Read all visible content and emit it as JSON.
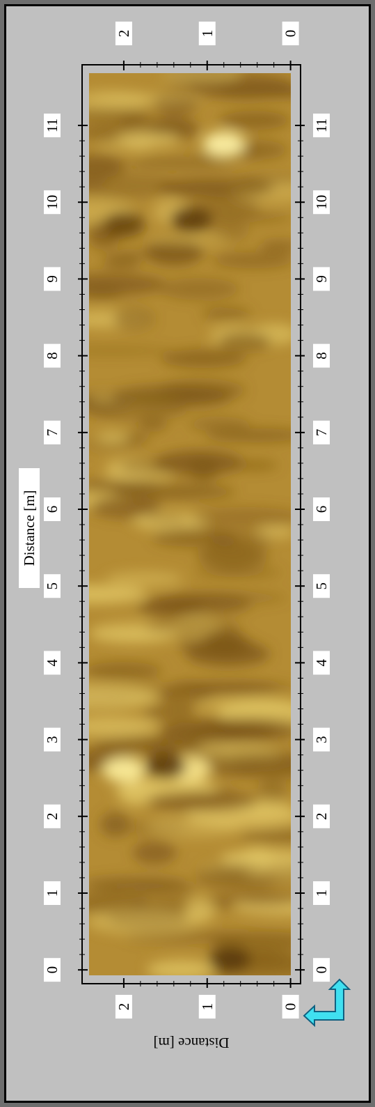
{
  "chart_data": {
    "type": "image-map",
    "x_label": "Distance [m]",
    "y_label": "Distance [m]",
    "xlim": [
      -0.18,
      11.79
    ],
    "xticks": [
      0,
      1,
      2,
      3,
      4,
      5,
      6,
      7,
      8,
      9,
      10,
      11
    ],
    "ylim": [
      -0.12,
      2.5
    ],
    "yticks": [
      0,
      1,
      2
    ],
    "minor_ticks_per_major": 5
  }
}
